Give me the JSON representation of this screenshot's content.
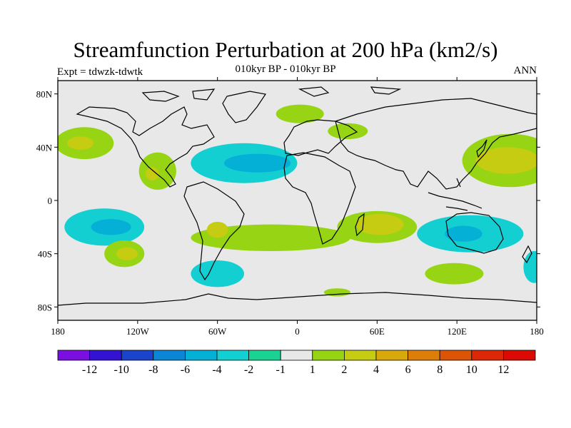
{
  "title": "Streamfunction Perturbation at 200 hPa (km2/s)",
  "subtitle_left": "Expt = tdwzk-tdwtk",
  "subtitle_center": "010kyr BP - 010kyr BP",
  "subtitle_right": "ANN",
  "x_ticks": [
    "180",
    "120W",
    "60W",
    "0",
    "60E",
    "120E",
    "180"
  ],
  "y_ticks": [
    "80N",
    "40N",
    "0",
    "40S",
    "80S"
  ],
  "colorbar": {
    "colors": [
      "#7b0fe0",
      "#3412d4",
      "#1a44cc",
      "#0b86d6",
      "#05b0d6",
      "#14cfd2",
      "#1ad392",
      "#e8e8e8",
      "#96d414",
      "#c6cc12",
      "#d8a90c",
      "#dc7e08",
      "#dc5406",
      "#dc2806",
      "#dc0a04"
    ],
    "labels": [
      "-12",
      "-10",
      "-8",
      "-6",
      "-4",
      "-2",
      "-1",
      "1",
      "2",
      "4",
      "6",
      "8",
      "10",
      "12"
    ]
  },
  "map_data": {
    "type": "filled-contour",
    "lon_range": [
      -180,
      180
    ],
    "lat_range": [
      -90,
      90
    ],
    "background_color": "#e8e8e8",
    "regions": [
      {
        "name": "north-pacific-positive",
        "level": 2,
        "lon": -160,
        "lat": 43,
        "rx": 22,
        "ry": 12
      },
      {
        "name": "north-pacific-core",
        "level": 4,
        "lon": -163,
        "lat": 43,
        "rx": 10,
        "ry": 5
      },
      {
        "name": "central-america-positive",
        "level": 2,
        "lon": -105,
        "lat": 22,
        "rx": 14,
        "ry": 14
      },
      {
        "name": "central-america-core",
        "level": 4,
        "lon": -109,
        "lat": 20,
        "rx": 5,
        "ry": 5
      },
      {
        "name": "north-atlantic-negative",
        "level": -2,
        "lon": -40,
        "lat": 28,
        "rx": 40,
        "ry": 15
      },
      {
        "name": "north-atlantic-core",
        "level": -4,
        "lon": -30,
        "lat": 28,
        "rx": 25,
        "ry": 7
      },
      {
        "name": "greenland-positive",
        "level": 2,
        "lon": 2,
        "lat": 65,
        "rx": 18,
        "ry": 7
      },
      {
        "name": "asia-positive",
        "level": 2,
        "lon": 38,
        "lat": 52,
        "rx": 15,
        "ry": 6
      },
      {
        "name": "nw-pacific-positive",
        "level": 2,
        "lon": 160,
        "lat": 30,
        "rx": 36,
        "ry": 20
      },
      {
        "name": "nw-pacific-core",
        "level": 4,
        "lon": 158,
        "lat": 30,
        "rx": 24,
        "ry": 10
      },
      {
        "name": "southwest-pacific-negative",
        "level": -2,
        "lon": -145,
        "lat": -20,
        "rx": 30,
        "ry": 14
      },
      {
        "name": "southwest-pacific-core",
        "level": -4,
        "lon": -140,
        "lat": -20,
        "rx": 15,
        "ry": 6
      },
      {
        "name": "south-atlantic-positive",
        "level": 2,
        "lon": -20,
        "lat": -28,
        "rx": 60,
        "ry": 10
      },
      {
        "name": "south-atlantic-core",
        "level": 4,
        "lon": -60,
        "lat": -22,
        "rx": 8,
        "ry": 6
      },
      {
        "name": "indian-ocean-positive",
        "level": 2,
        "lon": 60,
        "lat": -20,
        "rx": 30,
        "ry": 12
      },
      {
        "name": "indian-ocean-core",
        "level": 4,
        "lon": 62,
        "lat": -18,
        "rx": 18,
        "ry": 8
      },
      {
        "name": "australia-negative",
        "level": -2,
        "lon": 130,
        "lat": -25,
        "rx": 40,
        "ry": 14
      },
      {
        "name": "australia-core",
        "level": -4,
        "lon": 125,
        "lat": -25,
        "rx": 14,
        "ry": 6
      },
      {
        "name": "south-pacific-positive",
        "level": 2,
        "lon": -130,
        "lat": -40,
        "rx": 15,
        "ry": 10
      },
      {
        "name": "south-pacific-core",
        "level": 4,
        "lon": -128,
        "lat": -40,
        "rx": 8,
        "ry": 5
      },
      {
        "name": "southern-ocean-negative",
        "level": -2,
        "lon": -60,
        "lat": -55,
        "rx": 20,
        "ry": 10
      },
      {
        "name": "southern-ocean-positive-east",
        "level": 2,
        "lon": 118,
        "lat": -55,
        "rx": 22,
        "ry": 8
      },
      {
        "name": "antarctic-positive",
        "level": 2,
        "lon": 30,
        "lat": -69,
        "rx": 10,
        "ry": 3
      },
      {
        "name": "far-east-pacific-negative",
        "level": -2,
        "lon": 178,
        "lat": -50,
        "rx": 8,
        "ry": 12
      }
    ]
  }
}
